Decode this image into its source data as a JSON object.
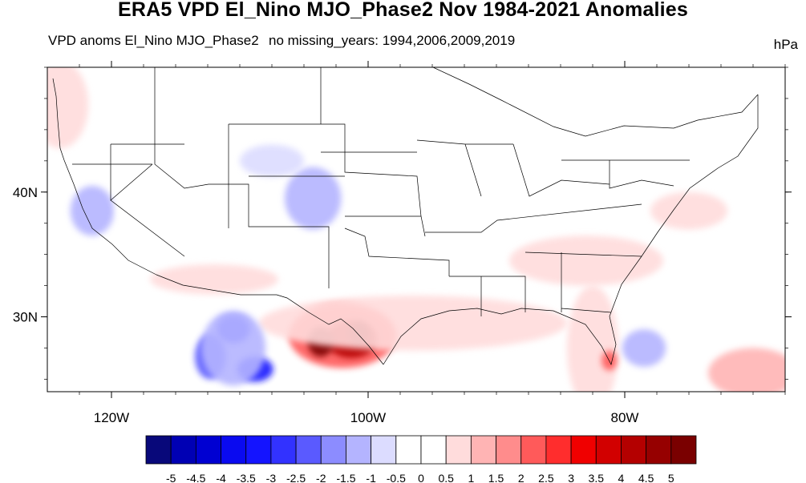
{
  "title": "ERA5 VPD El_Nino MJO_Phase2 Nov 1984-2021 Anomalies",
  "subtitle_left": "VPD anoms El_Nino MJO_Phase2",
  "subtitle_center": "no missing_years: 1994,2006,2009,2019",
  "units": "hPa",
  "map": {
    "lon_range": [
      -125,
      -67.5
    ],
    "lat_range": [
      24,
      50
    ],
    "lon_ticks": [
      {
        "value": -120,
        "label": "120W"
      },
      {
        "value": -100,
        "label": "100W"
      },
      {
        "value": -80,
        "label": "80W"
      }
    ],
    "lat_ticks": [
      {
        "value": 40,
        "label": "40N"
      },
      {
        "value": 30,
        "label": "30N"
      }
    ]
  },
  "colorbar": {
    "colors": [
      "#08087a",
      "#0000b4",
      "#0000d2",
      "#0a0af0",
      "#1414ff",
      "#3232ff",
      "#5a5aff",
      "#8c8cff",
      "#b4b4ff",
      "#dcdcff",
      "#ffffff",
      "#ffffff",
      "#ffdcdc",
      "#ffb4b4",
      "#ff8c8c",
      "#ff5a5a",
      "#ff2d2d",
      "#f00000",
      "#d20000",
      "#b40000",
      "#960000",
      "#7a0000"
    ],
    "labels": [
      "-5",
      "-4.5",
      "-4",
      "-3.5",
      "-3",
      "-2.5",
      "-2",
      "-1.5",
      "-1",
      "-0.5",
      "0",
      "0.5",
      "1",
      "1.5",
      "2",
      "2.5",
      "3",
      "3.5",
      "4",
      "4.5",
      "5"
    ]
  },
  "anomaly_blobs": [
    {
      "lon": -102.0,
      "lat": 28.5,
      "rx": 4.2,
      "ry": 2.6,
      "level": 2
    },
    {
      "lon": -101.3,
      "lat": 28.2,
      "rx": 2.0,
      "ry": 1.5,
      "level": 4
    },
    {
      "lon": -103.7,
      "lat": 28.0,
      "rx": 1.0,
      "ry": 1.2,
      "level": 5
    },
    {
      "lon": -100.7,
      "lat": 28.7,
      "rx": 0.8,
      "ry": 0.9,
      "level": 5
    },
    {
      "lon": -96.5,
      "lat": 29.5,
      "rx": 12.0,
      "ry": 2.2,
      "level": 0.6
    },
    {
      "lon": -82.5,
      "lat": 27.5,
      "rx": 2.0,
      "ry": 5.0,
      "level": 0.8
    },
    {
      "lon": -81.2,
      "lat": 26.5,
      "rx": 0.6,
      "ry": 0.8,
      "level": 2
    },
    {
      "lon": -83.0,
      "lat": 34.5,
      "rx": 6.0,
      "ry": 2.0,
      "level": 0.7
    },
    {
      "lon": -70.0,
      "lat": 25.5,
      "rx": 3.5,
      "ry": 2.0,
      "level": 1.2
    },
    {
      "lon": -124.0,
      "lat": 47.0,
      "rx": 2.2,
      "ry": 3.5,
      "level": 0.7
    },
    {
      "lon": -112.0,
      "lat": 33.0,
      "rx": 5.0,
      "ry": 1.2,
      "level": 0.5
    },
    {
      "lon": -75.0,
      "lat": 38.5,
      "rx": 3.0,
      "ry": 1.5,
      "level": 0.6
    },
    {
      "lon": -110.5,
      "lat": 29.0,
      "rx": 1.3,
      "ry": 1.1,
      "level": -3
    },
    {
      "lon": -108.8,
      "lat": 25.8,
      "rx": 1.4,
      "ry": 1.0,
      "level": -3.5
    },
    {
      "lon": -112.3,
      "lat": 26.8,
      "rx": 1.2,
      "ry": 1.8,
      "level": -2.5
    },
    {
      "lon": -110.5,
      "lat": 27.5,
      "rx": 2.5,
      "ry": 3.0,
      "level": -1.2
    },
    {
      "lon": -121.5,
      "lat": 38.5,
      "rx": 1.7,
      "ry": 2.0,
      "level": -1.5
    },
    {
      "lon": -104.3,
      "lat": 39.5,
      "rx": 2.2,
      "ry": 2.5,
      "level": -1.2
    },
    {
      "lon": -107.5,
      "lat": 42.5,
      "rx": 2.5,
      "ry": 1.3,
      "level": -0.7
    },
    {
      "lon": -78.5,
      "lat": 27.5,
      "rx": 1.7,
      "ry": 1.5,
      "level": -1.2
    },
    {
      "lon": -116.5,
      "lat": 38.5,
      "rx": 3.0,
      "ry": 2.0,
      "level": -0.5
    }
  ]
}
